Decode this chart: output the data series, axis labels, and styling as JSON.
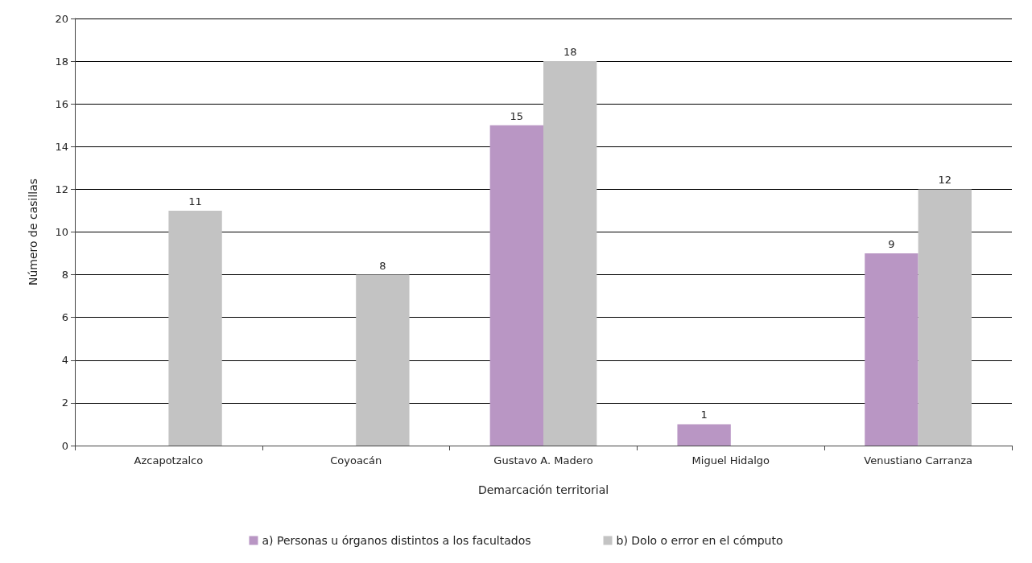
{
  "chart_data": {
    "type": "bar",
    "xlabel": "Demarcación territorial",
    "ylabel": "Número de casillas",
    "categories": [
      "Azcapotzalco",
      "Coyoacán",
      "Gustavo A. Madero",
      "Miguel Hidalgo",
      "Venustiano Carranza"
    ],
    "series": [
      {
        "name": "a) Personas u órganos distintos a los facultados",
        "color": "#b996c4",
        "values": [
          null,
          null,
          15,
          1,
          9
        ]
      },
      {
        "name": "b) Dolo o error en el cómputo",
        "color": "#c3c3c3",
        "values": [
          11,
          8,
          18,
          null,
          12
        ]
      }
    ],
    "ylim": [
      0,
      20
    ],
    "yticks": [
      0,
      2,
      4,
      6,
      8,
      10,
      12,
      14,
      16,
      18,
      20
    ],
    "grid": "y",
    "legend": "bottom",
    "data_labels": true
  }
}
